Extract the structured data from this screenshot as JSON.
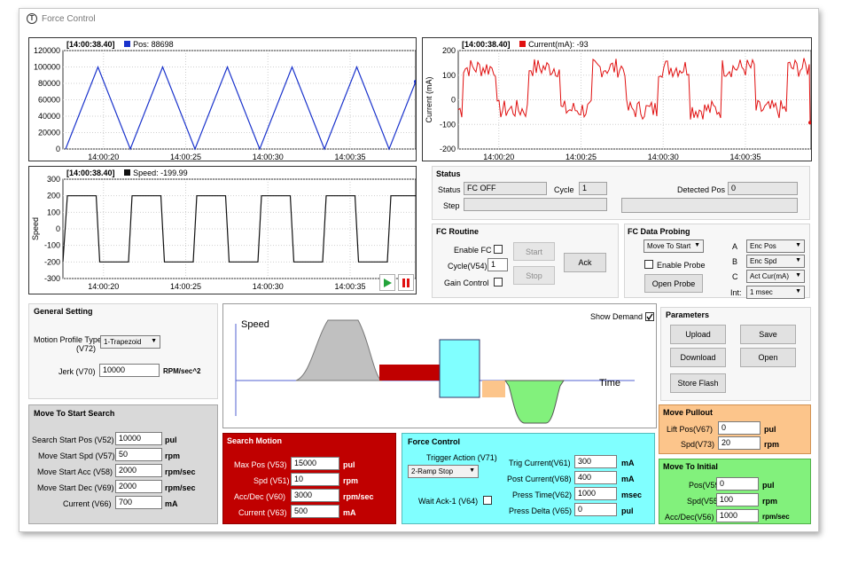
{
  "app": {
    "title": "Force Control"
  },
  "chart_data": [
    {
      "type": "line",
      "title": "[14:00:38.40]",
      "series": [
        {
          "name": "Pos: 88698",
          "color": "#1a33cc"
        }
      ],
      "ylim": [
        0,
        120000
      ],
      "yticks": [
        "120000",
        "100000",
        "80000",
        "60000",
        "40000",
        "20000",
        "0"
      ],
      "xticks": [
        "14:00:20",
        "14:00:25",
        "14:00:30",
        "14:00:35"
      ],
      "description": "triangle wave 0 to 100000, period ~3.7s"
    },
    {
      "type": "line",
      "title": "[14:00:38.40]",
      "series": [
        {
          "name": "Current(mA): -93",
          "color": "#e01010"
        }
      ],
      "ylabel": "Current (mA)",
      "ylim": [
        -200,
        200
      ],
      "yticks": [
        "200",
        "100",
        "0",
        "-100",
        "-200"
      ],
      "xticks": [
        "14:00:20",
        "14:00:25",
        "14:00:30",
        "14:00:35"
      ]
    },
    {
      "type": "line",
      "title": "[14:00:38.40]",
      "series": [
        {
          "name": "Speed: -199.99",
          "color": "#111111"
        }
      ],
      "ylabel": "Speed",
      "ylim": [
        -300,
        300
      ],
      "yticks": [
        "300",
        "200",
        "100",
        "0",
        "-100",
        "-200",
        "-300"
      ],
      "xticks": [
        "14:00:20",
        "14:00:25",
        "14:00:30",
        "14:00:35"
      ],
      "description": "square wave between 200 and -200"
    }
  ],
  "chart_hdr": {
    "ts": "[14:00:38.40]",
    "pos": "Pos: 88698",
    "cur": "Current(mA): -93",
    "spd": "Speed: -199.99",
    "cur_ylabel": "Current (mA)",
    "spd_ylabel": "Speed"
  },
  "status": {
    "title": "Status",
    "status_label": "Status",
    "status_value": "FC OFF",
    "cycle_label": "Cycle",
    "cycle_value": "1",
    "step_label": "Step",
    "detected_label": "Detected Pos",
    "detected_value": "0"
  },
  "fc_routine": {
    "title": "FC Routine",
    "enable_label": "Enable FC",
    "cycle_label": "Cycle(V54)",
    "cycle_value": "1",
    "gain_label": "Gain Control",
    "start": "Start",
    "stop": "Stop",
    "ack": "Ack"
  },
  "probing": {
    "title": "FC Data Probing",
    "mode": "Move To Start",
    "enable_probe": "Enable Probe",
    "open_probe": "Open Probe",
    "channels": [
      {
        "label": "A",
        "value": "Enc Pos"
      },
      {
        "label": "B",
        "value": "Enc Spd"
      },
      {
        "label": "C",
        "value": "Act Cur(mA)"
      },
      {
        "label": "Int:",
        "value": "1 msec"
      }
    ]
  },
  "general": {
    "title": "General Setting",
    "profile_label": "Motion Profile Type",
    "profile_label2": "(V72)",
    "profile_value": "1-Trapezoid",
    "jerk_label": "Jerk (V70)",
    "jerk_value": "10000",
    "jerk_unit": "RPM/sec^2"
  },
  "profile": {
    "speed_label": "Speed",
    "time_label": "Time",
    "show_demand": "Show Demand"
  },
  "parameters": {
    "title": "Parameters",
    "upload": "Upload",
    "save": "Save",
    "download": "Download",
    "open": "Open",
    "store": "Store Flash"
  },
  "move_start": {
    "title": "Move To Start Search",
    "rows": [
      {
        "label": "Search Start Pos (V52)",
        "value": "10000",
        "unit": "pul"
      },
      {
        "label": "Move Start Spd (V57)",
        "value": "50",
        "unit": "rpm"
      },
      {
        "label": "Move Start Acc (V58)",
        "value": "2000",
        "unit": "rpm/sec"
      },
      {
        "label": "Move Start Dec (V69)",
        "value": "2000",
        "unit": "rpm/sec"
      },
      {
        "label": "Current (V66)",
        "value": "700",
        "unit": "mA"
      }
    ]
  },
  "search_motion": {
    "title": "Search Motion",
    "rows": [
      {
        "label": "Max Pos (V53)",
        "value": "15000",
        "unit": "pul"
      },
      {
        "label": "Spd (V51)",
        "value": "10",
        "unit": "rpm"
      },
      {
        "label": "Acc/Dec (V60)",
        "value": "3000",
        "unit": "rpm/sec"
      },
      {
        "label": "Current (V63)",
        "value": "500",
        "unit": "mA"
      }
    ]
  },
  "force_control": {
    "title": "Force Control",
    "trigger_label": "Trigger Action (V71)",
    "trigger_value": "2-Ramp Stop",
    "wait_label": "Wait Ack-1 (V64)",
    "rows": [
      {
        "label": "Trig Current(V61)",
        "value": "300",
        "unit": "mA"
      },
      {
        "label": "Post Current(V68)",
        "value": "400",
        "unit": "mA"
      },
      {
        "label": "Press Time(V62)",
        "value": "1000",
        "unit": "msec"
      },
      {
        "label": "Press Delta (V65)",
        "value": "0",
        "unit": "pul"
      }
    ]
  },
  "pullout": {
    "title": "Move Pullout",
    "rows": [
      {
        "label": "Lift Pos(V67)",
        "value": "0",
        "unit": "pul"
      },
      {
        "label": "Spd(V73)",
        "value": "20",
        "unit": "rpm"
      }
    ]
  },
  "initial": {
    "title": "Move To Initial",
    "rows": [
      {
        "label": "Pos(V59)",
        "value": "0",
        "unit": "pul"
      },
      {
        "label": "Spd(V55)",
        "value": "100",
        "unit": "rpm"
      },
      {
        "label": "Acc/Dec(V56)",
        "value": "1000",
        "unit": "rpm/sec"
      }
    ]
  },
  "colors": {
    "pos": "#1a33cc",
    "current": "#e01010",
    "speed": "#111111",
    "search_motion": "#c00000",
    "force_control": "#80ffff",
    "pullout": "#fcc58b",
    "initial": "#82f17c",
    "move_start": "#d9d9d9"
  }
}
